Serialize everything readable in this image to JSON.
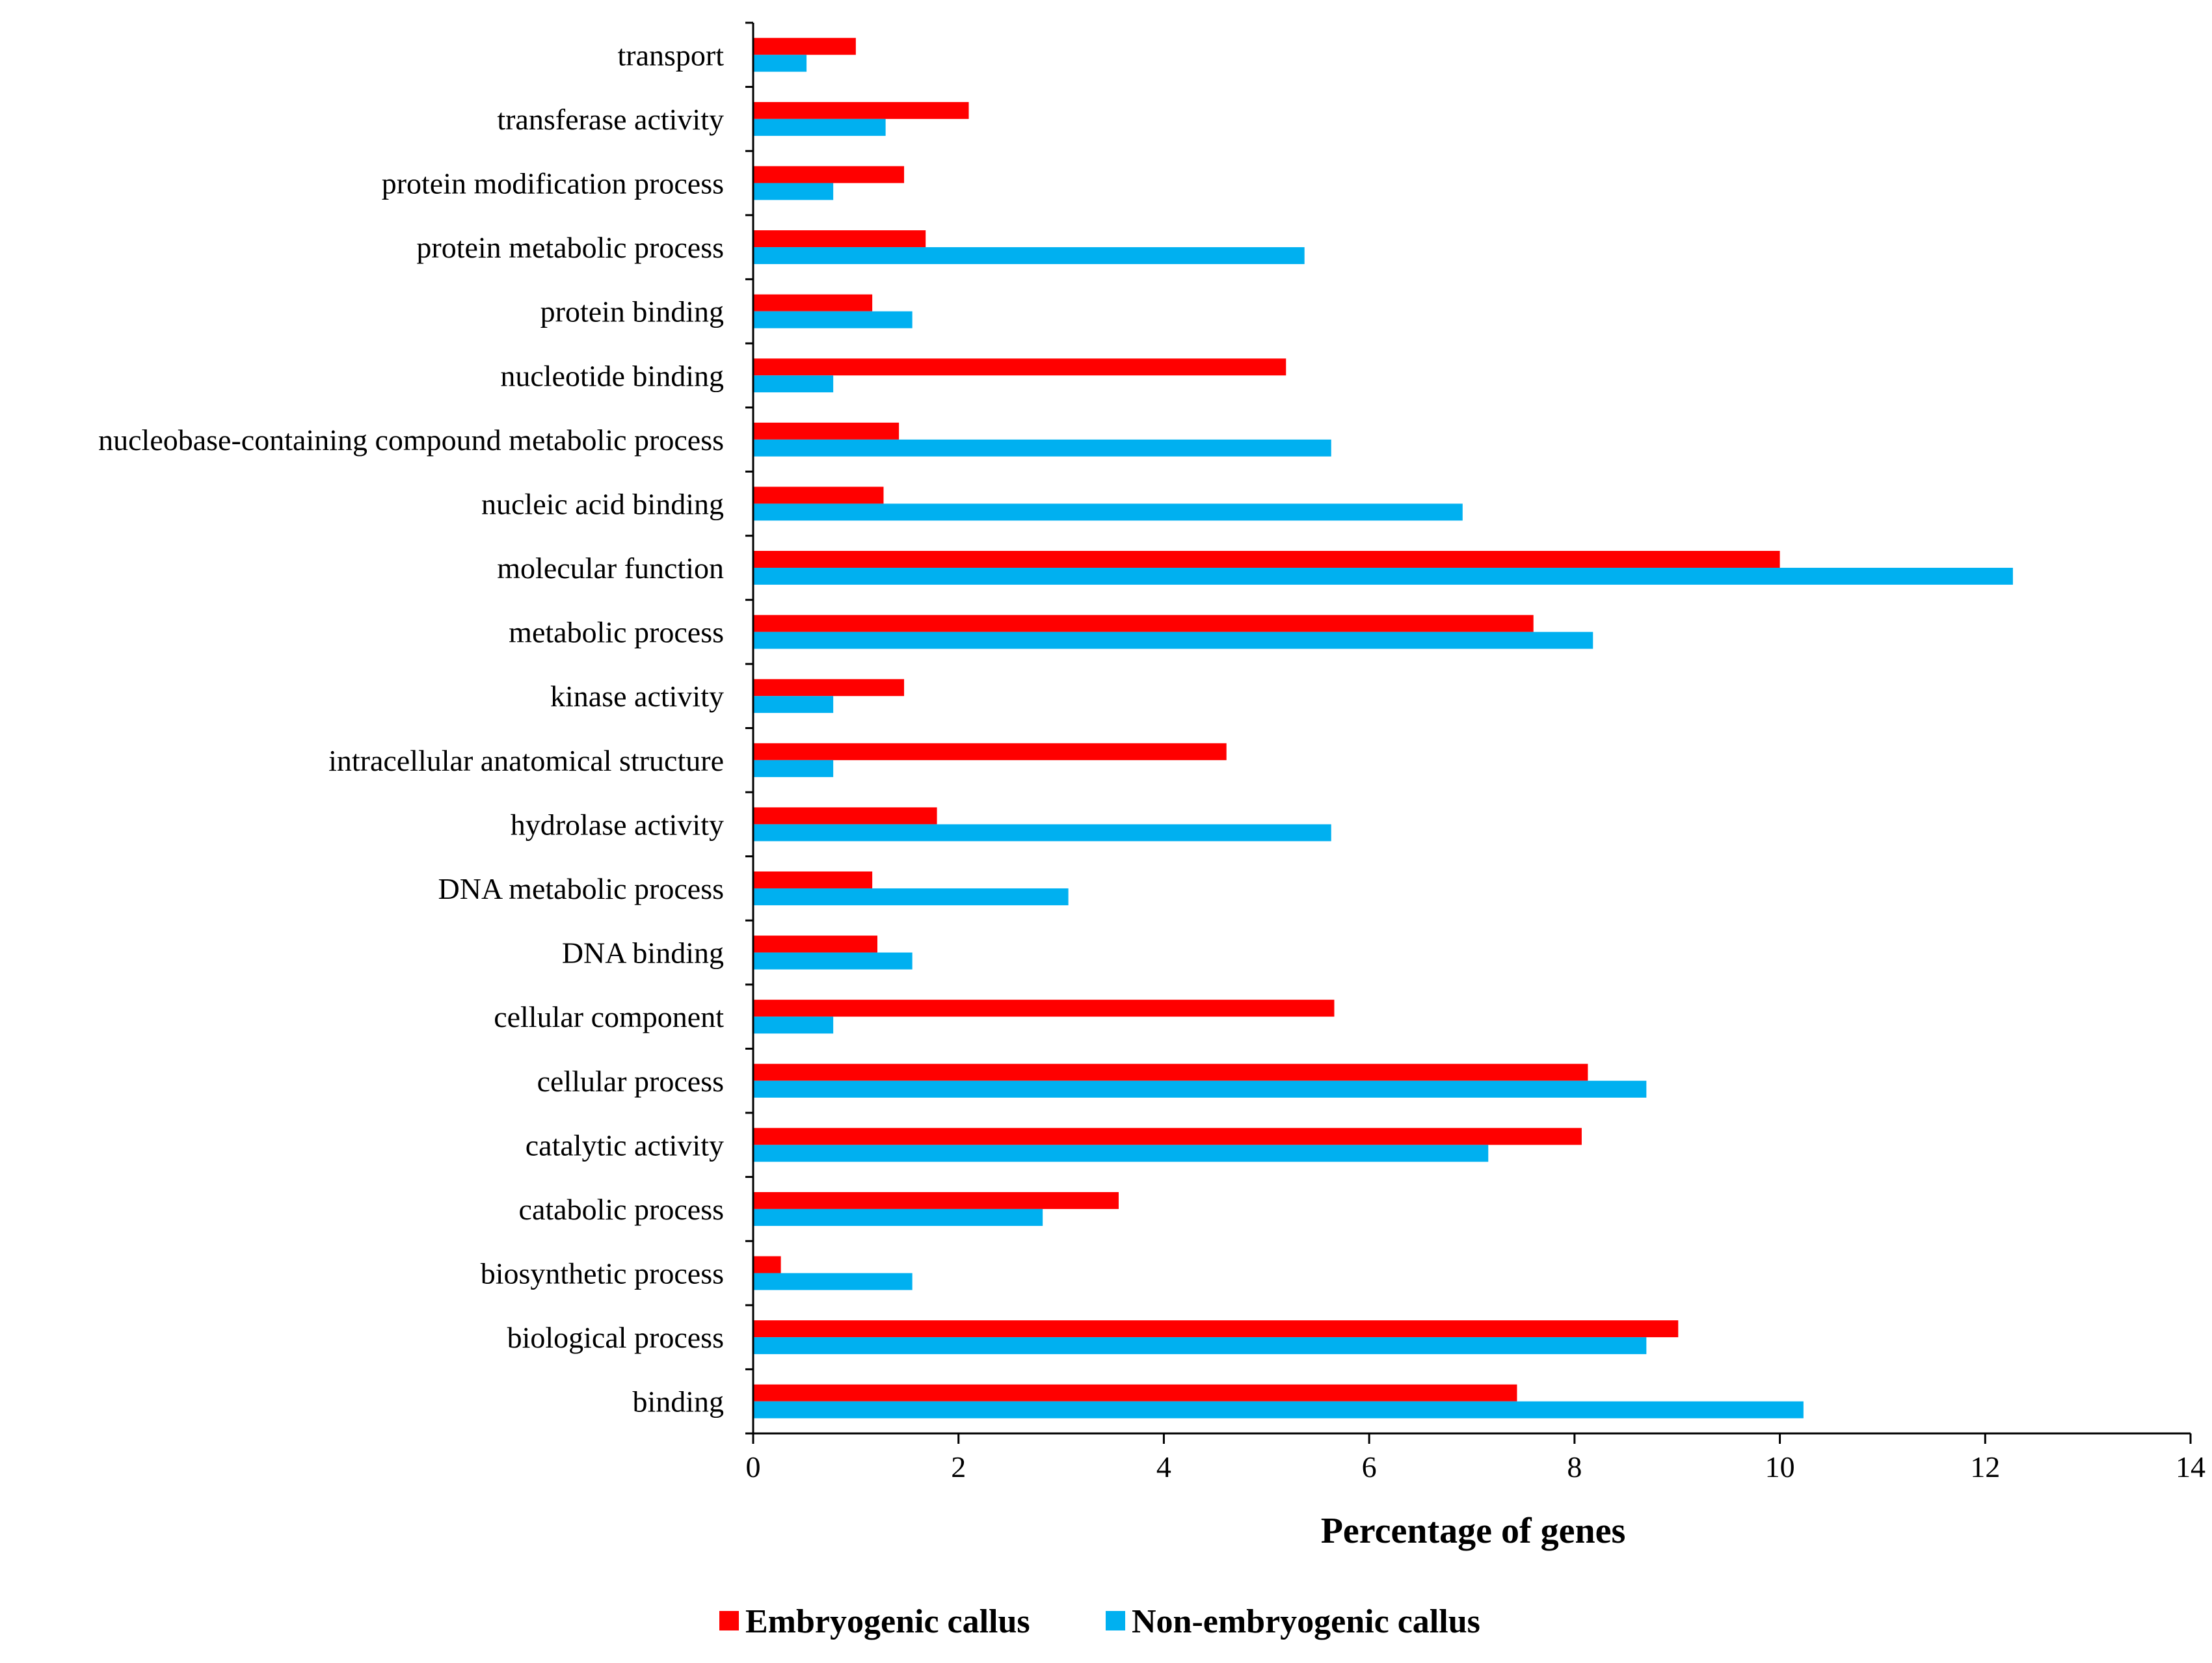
{
  "chart_data": {
    "type": "bar",
    "orientation": "horizontal",
    "title": "",
    "xlabel": "Percentage of genes",
    "ylabel": "",
    "xlim": [
      0,
      14
    ],
    "xticks": [
      0,
      2,
      4,
      6,
      8,
      10,
      12,
      14
    ],
    "xtick_labels": [
      "0",
      "2",
      "4",
      "6",
      "8",
      "10",
      "12",
      "14"
    ],
    "grid": false,
    "legend_position": "bottom-center",
    "categories": [
      "transport",
      "transferase activity",
      "protein modification process",
      "protein metabolic process",
      "protein binding",
      "nucleotide binding",
      "nucleobase-containing compound metabolic process",
      "nucleic acid binding",
      "molecular function",
      "metabolic process",
      "kinase activity",
      "intracellular anatomical structure",
      "hydrolase activity",
      "DNA metabolic process",
      "DNA binding",
      "cellular component",
      "cellular process",
      "catalytic activity",
      "catabolic process",
      "biosynthetic process",
      "biological process",
      "binding"
    ],
    "series": [
      {
        "name": "Embryogenic callus",
        "color": "#ff0000",
        "values": [
          1.0,
          2.1,
          1.47,
          1.68,
          1.16,
          5.19,
          1.42,
          1.27,
          10.0,
          7.6,
          1.47,
          4.61,
          1.79,
          1.16,
          1.21,
          5.66,
          8.13,
          8.07,
          3.56,
          0.27,
          9.01,
          7.44
        ]
      },
      {
        "name": "Non-embryogenic callus",
        "color": "#00b0f0",
        "values": [
          0.52,
          1.29,
          0.78,
          5.37,
          1.55,
          0.78,
          5.63,
          6.91,
          12.27,
          8.18,
          0.78,
          0.78,
          5.63,
          3.07,
          1.55,
          0.78,
          8.7,
          7.16,
          2.82,
          1.55,
          8.7,
          10.23
        ]
      }
    ]
  }
}
